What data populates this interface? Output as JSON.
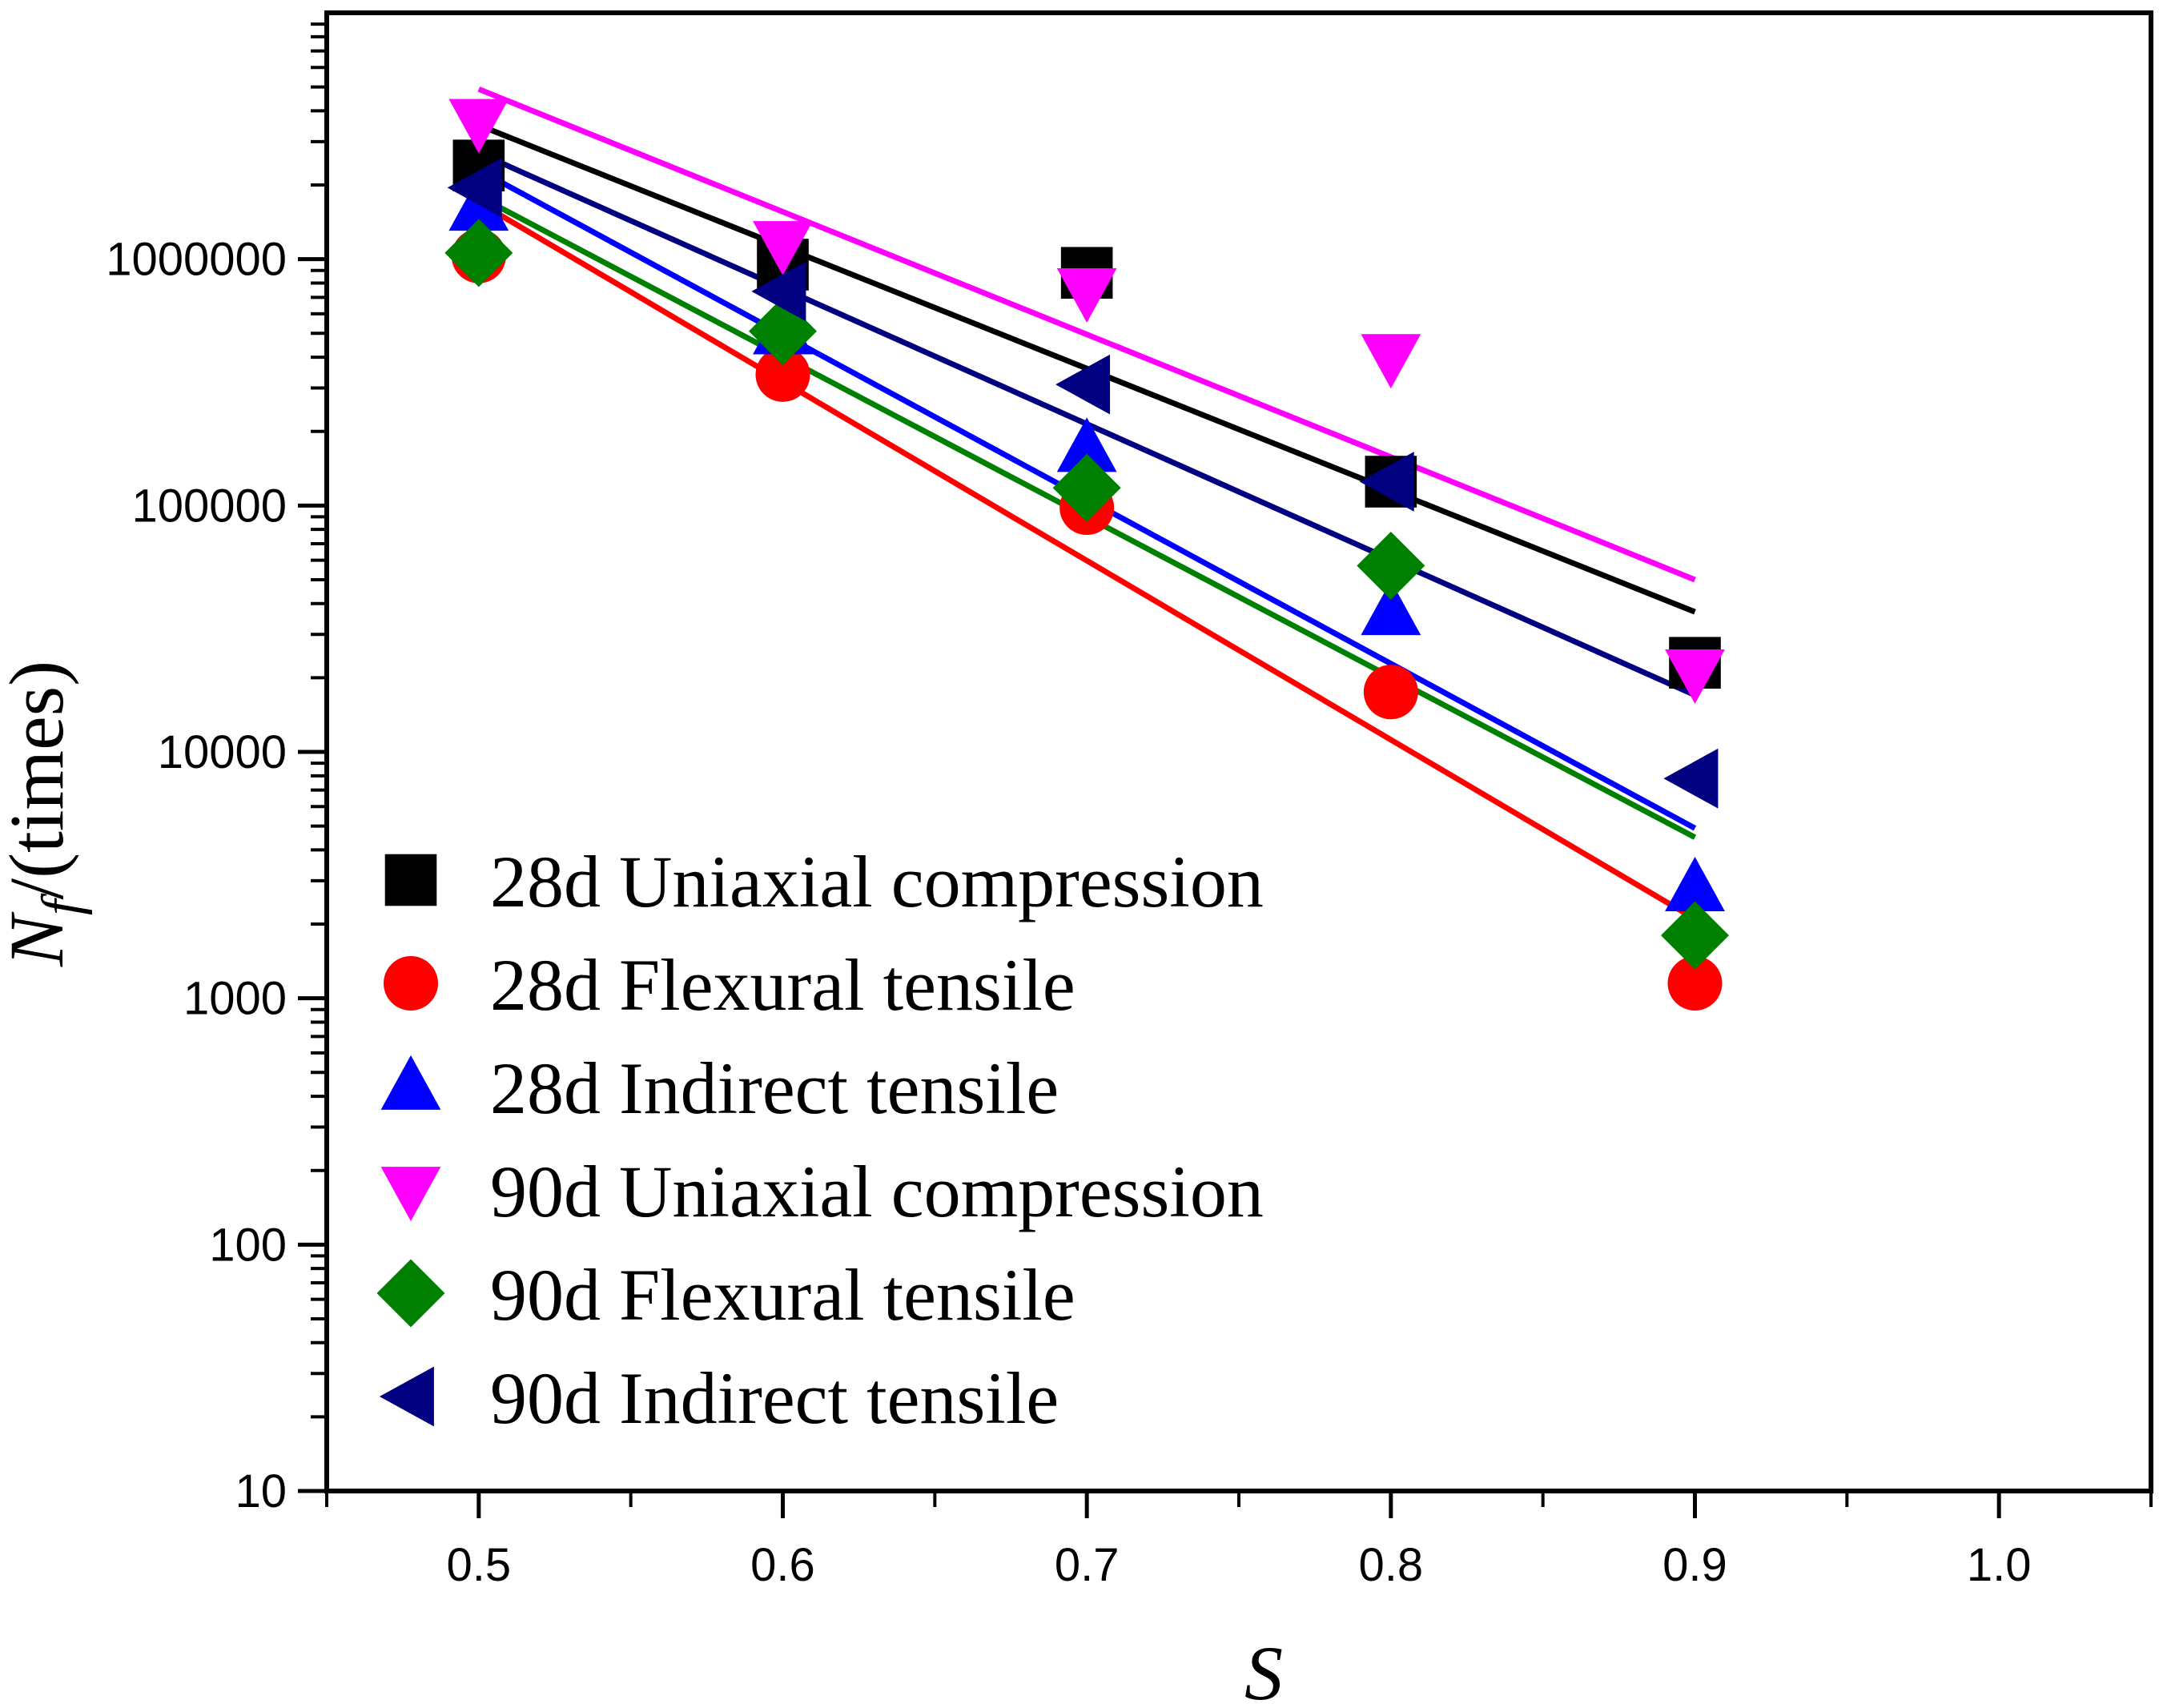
{
  "chart_data": {
    "type": "scatter",
    "title": "",
    "xlabel": "S",
    "ylabel": {
      "main": "N",
      "subscript": "f",
      "suffix": "/(times)"
    },
    "xlim": [
      0.45,
      1.05
    ],
    "ylim": [
      10,
      10000000
    ],
    "yscale": "log",
    "x_ticks": [
      "0.5",
      "0.6",
      "0.7",
      "0.8",
      "0.9",
      "1.0"
    ],
    "y_ticks": [
      "10",
      "100",
      "1000",
      "10000",
      "100000",
      "1000000"
    ],
    "grid": false,
    "legend_position": "bottom-left",
    "x": [
      0.5,
      0.6,
      0.7,
      0.8,
      0.9
    ],
    "series": [
      {
        "name": "28d Uniaxial compression",
        "color": "#000000",
        "marker": "square",
        "values": [
          2400000,
          950000,
          880000,
          125000,
          23000
        ],
        "fit": {
          "x": [
            0.5,
            0.9
          ],
          "y": [
            3500000,
            37000
          ]
        }
      },
      {
        "name": "28d Flexural tensile",
        "color": "#ff0000",
        "marker": "circle",
        "values": [
          1030000,
          340000,
          98000,
          17500,
          1150
        ],
        "fit": {
          "x": [
            0.5,
            0.9
          ],
          "y": [
            1700000,
            2100
          ]
        }
      },
      {
        "name": "28d Indirect tensile",
        "color": "#0000ff",
        "marker": "triangle-up",
        "values": [
          1620000,
          510000,
          170000,
          37000,
          2800
        ],
        "fit": {
          "x": [
            0.5,
            0.9
          ],
          "y": [
            2300000,
            4900
          ]
        }
      },
      {
        "name": "90d Uniaxial compression",
        "color": "#ff00ff",
        "marker": "triangle-down",
        "values": [
          3600000,
          1150000,
          740000,
          400000,
          21000
        ],
        "fit": {
          "x": [
            0.5,
            0.9
          ],
          "y": [
            4900000,
            50000
          ]
        }
      },
      {
        "name": "90d Flexural tensile",
        "color": "#008000",
        "marker": "diamond",
        "values": [
          1060000,
          510000,
          118000,
          57000,
          1800
        ],
        "fit": {
          "x": [
            0.5,
            0.9
          ],
          "y": [
            1800000,
            4500
          ]
        }
      },
      {
        "name": "90d Indirect tensile",
        "color": "#000080",
        "marker": "triangle-left",
        "values": [
          1950000,
          740000,
          310000,
          125000,
          7800
        ],
        "fit": {
          "x": [
            0.5,
            0.9
          ],
          "y": [
            2700000,
            17000
          ]
        }
      }
    ]
  }
}
